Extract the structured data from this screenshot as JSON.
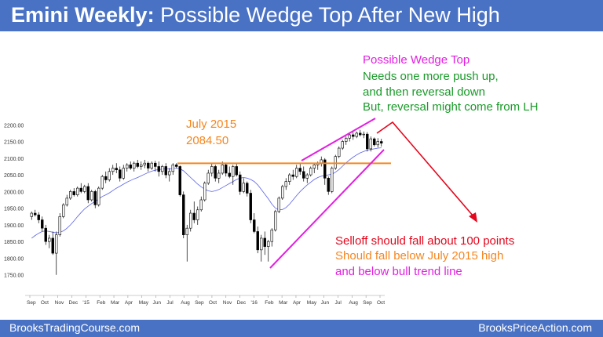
{
  "header": {
    "title_bold": "Emini Weekly:",
    "title_rest": " Possible Wedge Top After New High"
  },
  "footer": {
    "left": "BrooksTradingCourse.com",
    "right": "BrooksPriceAction.com"
  },
  "chart_data": {
    "type": "candlestick",
    "title": "Emini Weekly: Possible Wedge Top After New High",
    "y_ticks": [
      "2200.00",
      "2150.00",
      "2100.00",
      "2050.00",
      "2000.00",
      "1950.00",
      "1900.00",
      "1850.00",
      "1800.00",
      "1750.00"
    ],
    "ylim": [
      1740,
      2210
    ],
    "x_ticks": [
      "Sep",
      "Oct",
      "Nov",
      "Dec",
      "'15",
      "Feb",
      "Mar",
      "Apr",
      "May",
      "Jun",
      "Jul",
      "Aug",
      "Sep",
      "Oct",
      "Nov",
      "Dec",
      "'16",
      "Feb",
      "Mar",
      "Apr",
      "May",
      "Jun",
      "Jul",
      "Aug",
      "Sep",
      "Oct"
    ],
    "candles": [
      [
        1925,
        1940,
        1915,
        1935
      ],
      [
        1935,
        1945,
        1925,
        1930
      ],
      [
        1930,
        1938,
        1905,
        1915
      ],
      [
        1915,
        1925,
        1880,
        1890
      ],
      [
        1890,
        1900,
        1840,
        1850
      ],
      [
        1850,
        1870,
        1830,
        1860
      ],
      [
        1860,
        1880,
        1810,
        1815
      ],
      [
        1815,
        1880,
        1750,
        1870
      ],
      [
        1870,
        1935,
        1865,
        1925
      ],
      [
        1925,
        1965,
        1920,
        1960
      ],
      [
        1960,
        1990,
        1955,
        1980
      ],
      [
        1980,
        2005,
        1975,
        2000
      ],
      [
        2000,
        2010,
        1985,
        1990
      ],
      [
        1990,
        2015,
        1985,
        2010
      ],
      [
        2010,
        2025,
        1995,
        2000
      ],
      [
        2000,
        2020,
        1995,
        2015
      ],
      [
        2015,
        2025,
        1965,
        1975
      ],
      [
        1975,
        2005,
        1970,
        2000
      ],
      [
        2000,
        2005,
        1950,
        1960
      ],
      [
        1960,
        2015,
        1955,
        2010
      ],
      [
        2010,
        2050,
        2005,
        2045
      ],
      [
        2045,
        2060,
        2025,
        2035
      ],
      [
        2035,
        2070,
        2030,
        2060
      ],
      [
        2060,
        2080,
        2050,
        2070
      ],
      [
        2070,
        2085,
        2055,
        2065
      ],
      [
        2065,
        2075,
        2030,
        2040
      ],
      [
        2040,
        2080,
        2035,
        2070
      ],
      [
        2070,
        2085,
        2060,
        2080
      ],
      [
        2080,
        2090,
        2065,
        2070
      ],
      [
        2070,
        2090,
        2060,
        2085
      ],
      [
        2085,
        2095,
        2070,
        2075
      ],
      [
        2075,
        2090,
        2065,
        2080
      ],
      [
        2080,
        2095,
        2070,
        2085
      ],
      [
        2085,
        2090,
        2060,
        2070
      ],
      [
        2070,
        2090,
        2065,
        2085
      ],
      [
        2085,
        2092,
        2060,
        2075
      ],
      [
        2075,
        2090,
        2045,
        2060
      ],
      [
        2060,
        2080,
        2050,
        2075
      ],
      [
        2075,
        2085,
        2040,
        2050
      ],
      [
        2050,
        2070,
        2030,
        2060
      ],
      [
        2060,
        2085,
        2050,
        2080
      ],
      [
        2080,
        2085,
        2070,
        2075
      ],
      [
        2075,
        2078,
        1985,
        1990
      ],
      [
        1990,
        2000,
        1860,
        1870
      ],
      [
        1870,
        1900,
        1790,
        1890
      ],
      [
        1890,
        1945,
        1880,
        1935
      ],
      [
        1935,
        1970,
        1905,
        1915
      ],
      [
        1915,
        1955,
        1900,
        1945
      ],
      [
        1945,
        1985,
        1940,
        1975
      ],
      [
        1975,
        2030,
        1970,
        2025
      ],
      [
        2025,
        2065,
        2020,
        2055
      ],
      [
        2055,
        2085,
        2045,
        2075
      ],
      [
        2075,
        2080,
        2030,
        2040
      ],
      [
        2040,
        2065,
        2025,
        2055
      ],
      [
        2055,
        2090,
        2050,
        2080
      ],
      [
        2080,
        2085,
        2045,
        2055
      ],
      [
        2055,
        2075,
        2040,
        2045
      ],
      [
        2045,
        2080,
        2020,
        2075
      ],
      [
        2075,
        2085,
        2045,
        2050
      ],
      [
        2050,
        2060,
        1990,
        2000
      ],
      [
        2000,
        2040,
        1995,
        2025
      ],
      [
        2025,
        2030,
        1985,
        1995
      ],
      [
        1995,
        2005,
        1905,
        1915
      ],
      [
        1915,
        1935,
        1875,
        1880
      ],
      [
        1880,
        1895,
        1815,
        1825
      ],
      [
        1825,
        1870,
        1790,
        1860
      ],
      [
        1860,
        1880,
        1810,
        1835
      ],
      [
        1835,
        1855,
        1790,
        1850
      ],
      [
        1850,
        1890,
        1835,
        1885
      ],
      [
        1885,
        1945,
        1880,
        1940
      ],
      [
        1940,
        1985,
        1935,
        1980
      ],
      [
        1980,
        2020,
        1975,
        2015
      ],
      [
        2015,
        2040,
        2005,
        2030
      ],
      [
        2030,
        2055,
        2020,
        2050
      ],
      [
        2050,
        2065,
        2035,
        2045
      ],
      [
        2045,
        2080,
        2040,
        2070
      ],
      [
        2070,
        2085,
        2050,
        2060
      ],
      [
        2060,
        2075,
        2030,
        2040
      ],
      [
        2040,
        2055,
        2025,
        2050
      ],
      [
        2050,
        2075,
        2045,
        2070
      ],
      [
        2070,
        2085,
        2055,
        2080
      ],
      [
        2080,
        2090,
        2065,
        2085
      ],
      [
        2085,
        2105,
        2075,
        2095
      ],
      [
        2095,
        2100,
        2020,
        2040
      ],
      [
        2040,
        2045,
        1990,
        2000
      ],
      [
        2000,
        2075,
        1995,
        2070
      ],
      [
        2070,
        2110,
        2065,
        2105
      ],
      [
        2105,
        2135,
        2100,
        2130
      ],
      [
        2130,
        2155,
        2125,
        2150
      ],
      [
        2150,
        2165,
        2140,
        2160
      ],
      [
        2160,
        2175,
        2150,
        2170
      ],
      [
        2170,
        2178,
        2155,
        2165
      ],
      [
        2165,
        2180,
        2160,
        2175
      ],
      [
        2175,
        2185,
        2165,
        2170
      ],
      [
        2170,
        2180,
        2160,
        2172
      ],
      [
        2172,
        2178,
        2120,
        2128
      ],
      [
        2128,
        2165,
        2120,
        2158
      ],
      [
        2158,
        2162,
        2135,
        2140
      ],
      [
        2140,
        2160,
        2132,
        2150
      ],
      [
        2150,
        2158,
        2135,
        2145
      ]
    ],
    "sma20": [
      1860,
      1868,
      1875,
      1880,
      1882,
      1880,
      1878,
      1876,
      1878,
      1882,
      1890,
      1900,
      1912,
      1925,
      1937,
      1948,
      1956,
      1964,
      1970,
      1978,
      1985,
      1990,
      1996,
      2003,
      2010,
      2016,
      2022,
      2028,
      2033,
      2038,
      2042,
      2047,
      2052,
      2057,
      2061,
      2064,
      2066,
      2067,
      2068,
      2068,
      2069,
      2070,
      2068,
      2062,
      2052,
      2042,
      2032,
      2022,
      2014,
      2007,
      2002,
      2000,
      2002,
      2006,
      2012,
      2018,
      2024,
      2030,
      2036,
      2040,
      2042,
      2040,
      2036,
      2030,
      2020,
      2006,
      1992,
      1978,
      1962,
      1950,
      1945,
      1946,
      1952,
      1962,
      1975,
      1988,
      2000,
      2010,
      2020,
      2028,
      2036,
      2042,
      2046,
      2048,
      2050,
      2052,
      2058,
      2066,
      2076,
      2086,
      2095,
      2103,
      2110,
      2116,
      2120,
      2124,
      2126,
      2128,
      2130,
      2131
    ],
    "annotations": {
      "july_label": "July 2015",
      "july_value": "2084.50",
      "wedge_title": "Possible Wedge Top",
      "wedge_line1": "Needs one more push up,",
      "wedge_line2": "and then reversal down",
      "wedge_line3": "But, reversal might come from LH",
      "selloff1": "Selloff should fall about 100 points",
      "selloff2": "Should fall below July 2015 high",
      "selloff3": "and below bull trend line"
    },
    "colors": {
      "wedge": "#e21fe0",
      "level": "#f5861f",
      "arrow": "#e3061c",
      "green": "#1a9a2a",
      "sma": "#5b63e8"
    },
    "level_value": 2084.5
  }
}
